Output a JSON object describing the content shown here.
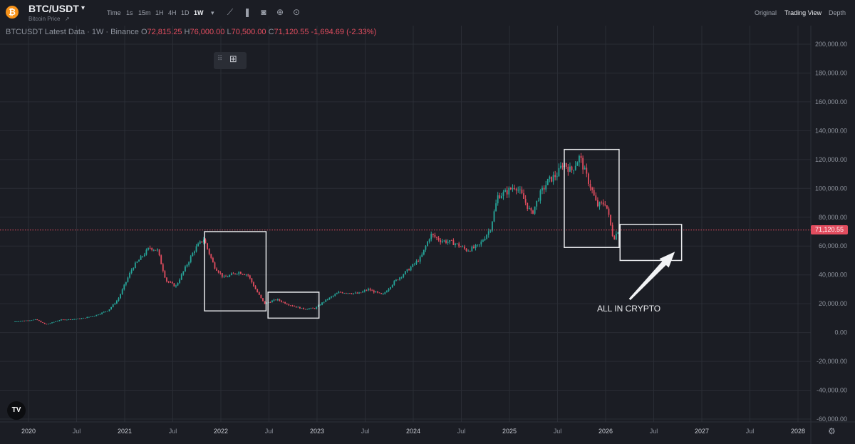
{
  "header": {
    "logo_glyph": "₿",
    "pair": "BTC/USDT",
    "pair_caret": "▾",
    "subtitle": "Bitcoin Price",
    "subtitle_caret": "↗",
    "timeframes": [
      "Time",
      "1s",
      "15m",
      "1H",
      "4H",
      "1D",
      "1W"
    ],
    "active_timeframe": "1W",
    "tf_caret": "▾",
    "tools": [
      {
        "name": "indicator-icon",
        "glyph": "⟋"
      },
      {
        "name": "candle-type-icon",
        "glyph": "❚"
      },
      {
        "name": "camera-icon",
        "glyph": "◙"
      },
      {
        "name": "plus-circle-icon",
        "glyph": "⊕"
      },
      {
        "name": "settings-circle-icon",
        "glyph": "⊙"
      }
    ],
    "views": [
      "Original",
      "Trading View",
      "Depth"
    ],
    "active_view": "Trading View"
  },
  "legend": {
    "title": "BTCUSDT Latest Data · 1W · Binance",
    "o_label": "O",
    "o_value": "72,815.25",
    "h_label": "H",
    "h_value": "76,000.00",
    "l_label": "L",
    "l_value": "70,500.00",
    "c_label": "C",
    "c_value": "71,120.55",
    "change": "-1,694.69 (-2.33%)"
  },
  "float_toolbar": {
    "grip": "⠿",
    "widget_glyph": "⊞"
  },
  "colors": {
    "up": "#26a69a",
    "down": "#e24d5f",
    "grid": "#2a2d35",
    "box": "#e8e9ec",
    "price_line": "#e24d5f"
  },
  "annotation": "ALL IN CRYPTO",
  "tv_logo": "TV",
  "settings_glyph": "⚙",
  "chart_data": {
    "type": "candlestick",
    "title": "",
    "xlabel": "",
    "ylabel": "",
    "ylim": [
      -60000,
      210000
    ],
    "xlim": [
      2019.86,
      2028.33
    ],
    "y_ticks": [
      -60000,
      -40000,
      -20000,
      0,
      20000,
      40000,
      60000,
      80000,
      100000,
      120000,
      140000,
      160000,
      180000,
      200000
    ],
    "y_tick_labels": [
      "-60,000.00",
      "-40,000.00",
      "-20,000.00",
      "0.00",
      "20,000.00",
      "40,000.00",
      "60,000.00",
      "80,000.00",
      "100,000.00",
      "120,000.00",
      "140,000.00",
      "160,000.00",
      "180,000.00",
      "200,000.00"
    ],
    "x_ticks": [
      2020.0,
      2020.5,
      2021.0,
      2021.5,
      2022.0,
      2022.5,
      2023.0,
      2023.5,
      2024.0,
      2024.5,
      2025.0,
      2025.5,
      2026.0,
      2026.5,
      2027.0,
      2027.5,
      2028.0
    ],
    "x_tick_labels": [
      "2020",
      "Jul",
      "2021",
      "Jul",
      "2022",
      "Jul",
      "2023",
      "Jul",
      "2024",
      "Jul",
      "2025",
      "Jul",
      "2026",
      "Jul",
      "2027",
      "Jul",
      "2028"
    ],
    "grid": true,
    "last_price": 71120.55,
    "last_price_label": "71,120.55",
    "price_path": [
      [
        2019.86,
        7500
      ],
      [
        2020.1,
        9000
      ],
      [
        2020.2,
        5500
      ],
      [
        2020.35,
        8800
      ],
      [
        2020.55,
        9500
      ],
      [
        2020.7,
        11500
      ],
      [
        2020.85,
        15500
      ],
      [
        2020.95,
        23000
      ],
      [
        2021.1,
        45000
      ],
      [
        2021.28,
        59000
      ],
      [
        2021.36,
        57000
      ],
      [
        2021.45,
        36000
      ],
      [
        2021.55,
        32000
      ],
      [
        2021.65,
        45000
      ],
      [
        2021.75,
        58000
      ],
      [
        2021.84,
        65000
      ],
      [
        2021.95,
        46000
      ],
      [
        2022.05,
        38000
      ],
      [
        2022.2,
        42000
      ],
      [
        2022.3,
        40000
      ],
      [
        2022.38,
        30000
      ],
      [
        2022.47,
        20000
      ],
      [
        2022.6,
        23000
      ],
      [
        2022.72,
        19500
      ],
      [
        2022.87,
        16500
      ],
      [
        2023.0,
        16800
      ],
      [
        2023.1,
        22000
      ],
      [
        2023.25,
        28000
      ],
      [
        2023.45,
        27000
      ],
      [
        2023.55,
        30000
      ],
      [
        2023.7,
        26000
      ],
      [
        2023.82,
        35000
      ],
      [
        2023.95,
        42500
      ],
      [
        2024.1,
        52000
      ],
      [
        2024.2,
        68000
      ],
      [
        2024.3,
        64000
      ],
      [
        2024.45,
        62000
      ],
      [
        2024.58,
        57000
      ],
      [
        2024.7,
        60000
      ],
      [
        2024.82,
        72000
      ],
      [
        2024.9,
        95000
      ],
      [
        2024.98,
        97000
      ],
      [
        2025.08,
        102000
      ],
      [
        2025.15,
        95000
      ],
      [
        2025.25,
        82000
      ],
      [
        2025.33,
        95000
      ],
      [
        2025.42,
        105000
      ],
      [
        2025.52,
        110000
      ],
      [
        2025.58,
        118000
      ],
      [
        2025.66,
        112000
      ],
      [
        2025.75,
        122000
      ],
      [
        2025.8,
        112000
      ],
      [
        2025.87,
        100000
      ],
      [
        2025.93,
        88000
      ],
      [
        2026.02,
        90000
      ],
      [
        2026.06,
        78000
      ],
      [
        2026.1,
        65000
      ],
      [
        2026.15,
        71000
      ]
    ],
    "boxes": [
      {
        "x0": 2021.83,
        "x1": 2022.47,
        "y0": 15000,
        "y1": 70000
      },
      {
        "x0": 2022.49,
        "x1": 2023.02,
        "y0": 10000,
        "y1": 28000
      },
      {
        "x0": 2025.57,
        "x1": 2026.14,
        "y0": 59000,
        "y1": 127000
      },
      {
        "x0": 2026.15,
        "x1": 2026.79,
        "y0": 50000,
        "y1": 75000
      }
    ],
    "arrow": {
      "from": [
        2026.25,
        23000
      ],
      "to": [
        2026.72,
        56000
      ]
    }
  }
}
